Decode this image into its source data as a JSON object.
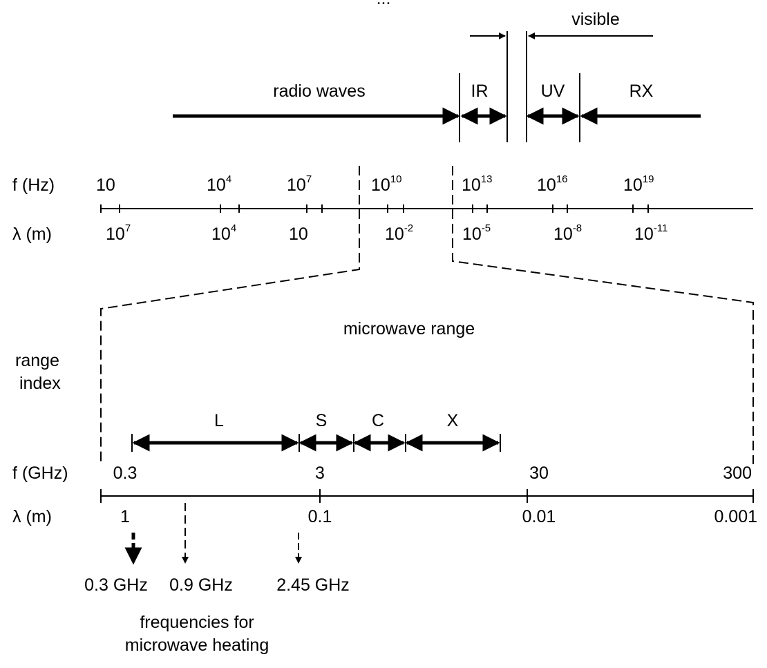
{
  "spectrum": {
    "partial_caption": "...",
    "visible": "visible",
    "bands": {
      "radio": "radio waves",
      "ir": "IR",
      "uv": "UV",
      "rx": "RX"
    },
    "f_label": "f (Hz)",
    "lambda_label": "λ (m)",
    "f_ticks": [
      {
        "base": "10",
        "exp": ""
      },
      {
        "base": "10",
        "exp": "4"
      },
      {
        "base": "10",
        "exp": "7"
      },
      {
        "base": "10",
        "exp": "10"
      },
      {
        "base": "10",
        "exp": "13"
      },
      {
        "base": "10",
        "exp": "16"
      },
      {
        "base": "10",
        "exp": "19"
      }
    ],
    "lambda_ticks": [
      {
        "base": "10",
        "exp": "7"
      },
      {
        "base": "10",
        "exp": "4"
      },
      {
        "base": "10",
        "exp": ""
      },
      {
        "base": "10",
        "exp": "-2"
      },
      {
        "base": "10",
        "exp": "-5"
      },
      {
        "base": "10",
        "exp": "-8"
      },
      {
        "base": "10",
        "exp": "-11"
      }
    ]
  },
  "microwave": {
    "title": "microwave range",
    "range_index": [
      "range",
      "index"
    ],
    "bands": [
      "L",
      "S",
      "C",
      "X"
    ],
    "f_label": "f (GHz)",
    "lambda_label": "λ (m)",
    "f_values": [
      "0.3",
      "3",
      "30",
      "300"
    ],
    "lambda_values": [
      "1",
      "0.1",
      "0.01",
      "0.001"
    ],
    "heating_freqs": [
      "0.3 GHz",
      "0.9 GHz",
      "2.45 GHz"
    ],
    "heating_caption": [
      "frequencies for",
      "microwave heating"
    ]
  }
}
